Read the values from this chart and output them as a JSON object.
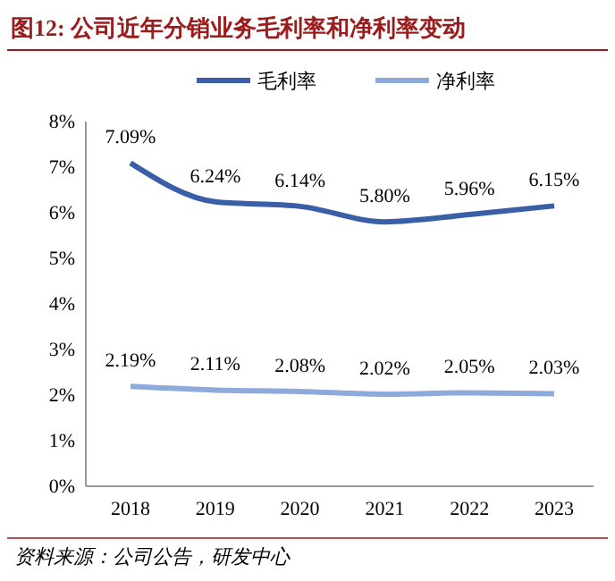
{
  "chart_data": {
    "type": "line",
    "title": "图12: 公司近年分销业务毛利率和净利率变动",
    "annotations": [
      "资料来源：公司公告，研发中心"
    ],
    "categories": [
      "2018",
      "2019",
      "2020",
      "2021",
      "2022",
      "2023"
    ],
    "series": [
      {
        "name": "毛利率",
        "color": "#3a5ea8",
        "values": [
          7.09,
          6.24,
          6.14,
          5.8,
          5.96,
          6.15
        ],
        "value_labels": [
          "7.09%",
          "6.24%",
          "6.14%",
          "5.80%",
          "5.96%",
          "6.15%"
        ]
      },
      {
        "name": "净利率",
        "color": "#8eaadb",
        "values": [
          2.19,
          2.11,
          2.08,
          2.02,
          2.05,
          2.03
        ],
        "value_labels": [
          "2.19%",
          "2.11%",
          "2.08%",
          "2.02%",
          "2.05%",
          "2.03%"
        ]
      }
    ],
    "ylim": [
      0,
      8
    ],
    "yticks": [
      {
        "value": 0,
        "label": "0%"
      },
      {
        "value": 1,
        "label": "1%"
      },
      {
        "value": 2,
        "label": "2%"
      },
      {
        "value": 3,
        "label": "3%"
      },
      {
        "value": 4,
        "label": "4%"
      },
      {
        "value": 5,
        "label": "5%"
      },
      {
        "value": 6,
        "label": "6%"
      },
      {
        "value": 7,
        "label": "7%"
      },
      {
        "value": 8,
        "label": "8%"
      }
    ],
    "legend": "top",
    "grid": false,
    "marker": "none",
    "line_style": "solid"
  }
}
